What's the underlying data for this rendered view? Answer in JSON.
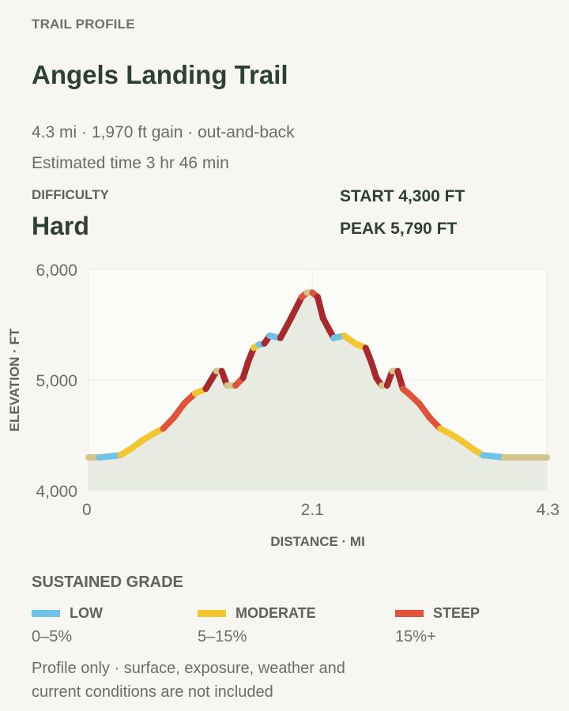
{
  "header": {
    "kicker": "TRAIL PROFILE",
    "title": "Angels Landing Trail",
    "meta_line": "4.3 mi · 1,970 ft gain · out-and-back",
    "time_line": "Estimated time 3 hr 46 min"
  },
  "difficulty": {
    "label": "DIFFICULTY",
    "value": "Hard"
  },
  "elevation": {
    "start": "START 4,300 FT",
    "peak": "PEAK 5,790 FT"
  },
  "chart_data": {
    "type": "area",
    "xlabel": "DISTANCE · MI",
    "ylabel": "ELEVATION · FT",
    "xlim": [
      0,
      4.3
    ],
    "ylim": [
      4000,
      6000
    ],
    "x_ticks": [
      0,
      2.1,
      4.3
    ],
    "x_tick_labels": [
      "0",
      "2.1",
      "4.3"
    ],
    "y_ticks": [
      4000,
      5000,
      6000
    ],
    "y_tick_labels": [
      "4,000",
      "5,000",
      "6,000"
    ],
    "grid": true,
    "fill_color": "#e7ebe2",
    "colors": {
      "low": "#6ec3e6",
      "moderate": "#f3c531",
      "steep": "#e0533b",
      "very_steep": "#a8292d",
      "flat": "#d4c58a"
    },
    "series": [
      {
        "x": [
          0,
          0.1,
          0.2,
          0.3,
          0.4,
          0.5,
          0.6,
          0.7,
          0.8,
          0.9,
          1.0,
          1.1,
          1.2,
          1.25,
          1.3,
          1.38,
          1.45,
          1.5,
          1.55,
          1.6,
          1.65,
          1.7,
          1.8,
          1.9,
          2.0,
          2.05,
          2.1,
          2.15,
          2.2,
          2.3,
          2.4,
          2.5,
          2.6,
          2.65,
          2.7,
          2.75,
          2.8,
          2.85,
          2.9,
          2.95,
          3.0,
          3.1,
          3.2,
          3.3,
          3.4,
          3.5,
          3.6,
          3.7,
          3.8,
          3.9,
          4.0,
          4.1,
          4.2,
          4.3
        ],
        "y": [
          4300,
          4300,
          4310,
          4320,
          4380,
          4450,
          4510,
          4560,
          4660,
          4790,
          4880,
          4920,
          5080,
          5080,
          4950,
          4950,
          5020,
          5170,
          5290,
          5320,
          5330,
          5400,
          5380,
          5560,
          5750,
          5790,
          5790,
          5750,
          5560,
          5380,
          5400,
          5330,
          5290,
          5170,
          5020,
          4950,
          4950,
          5080,
          5080,
          4920,
          4880,
          4790,
          4660,
          4560,
          4510,
          4450,
          4380,
          4320,
          4310,
          4300,
          4300,
          4300,
          4300,
          4300
        ]
      }
    ]
  },
  "legend": {
    "title": "SUSTAINED GRADE",
    "items": [
      {
        "name": "LOW",
        "range": "0–5%",
        "color": "#6ec3e6"
      },
      {
        "name": "MODERATE",
        "range": "5–15%",
        "color": "#f3c531"
      },
      {
        "name": "STEEP",
        "range": "15%+",
        "color": "#e0533b"
      }
    ]
  },
  "footnote": "Profile only · surface, exposure, weather and current conditions are not included"
}
